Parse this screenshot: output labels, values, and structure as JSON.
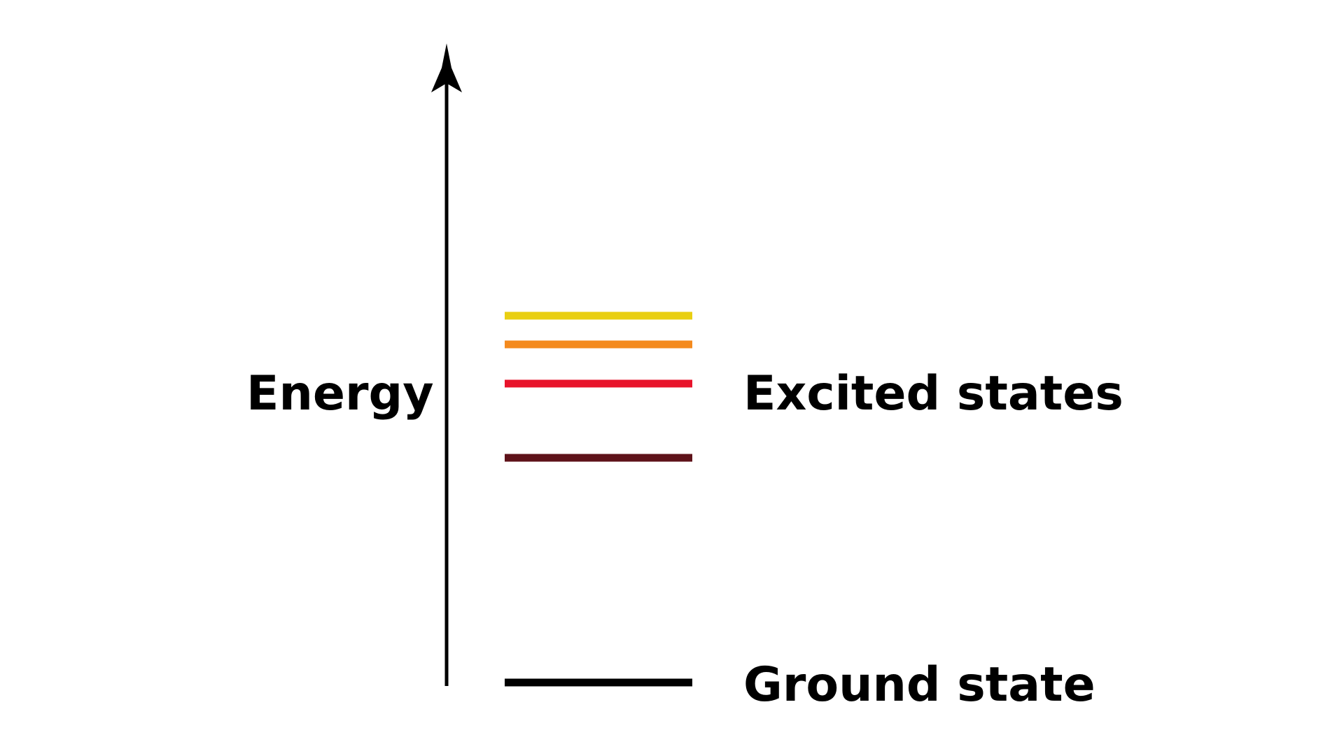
{
  "diagram": {
    "axis_label": "Energy",
    "excited_label": "Excited states",
    "ground_label": "Ground state",
    "levels": [
      {
        "name": "ground-state",
        "color": "#000000"
      },
      {
        "name": "excited-state-1",
        "color": "#5e1219"
      },
      {
        "name": "excited-state-2",
        "color": "#e8142b"
      },
      {
        "name": "excited-state-3",
        "color": "#f48a1e"
      },
      {
        "name": "excited-state-4",
        "color": "#e9cf12"
      }
    ],
    "axis_color": "#000000"
  }
}
